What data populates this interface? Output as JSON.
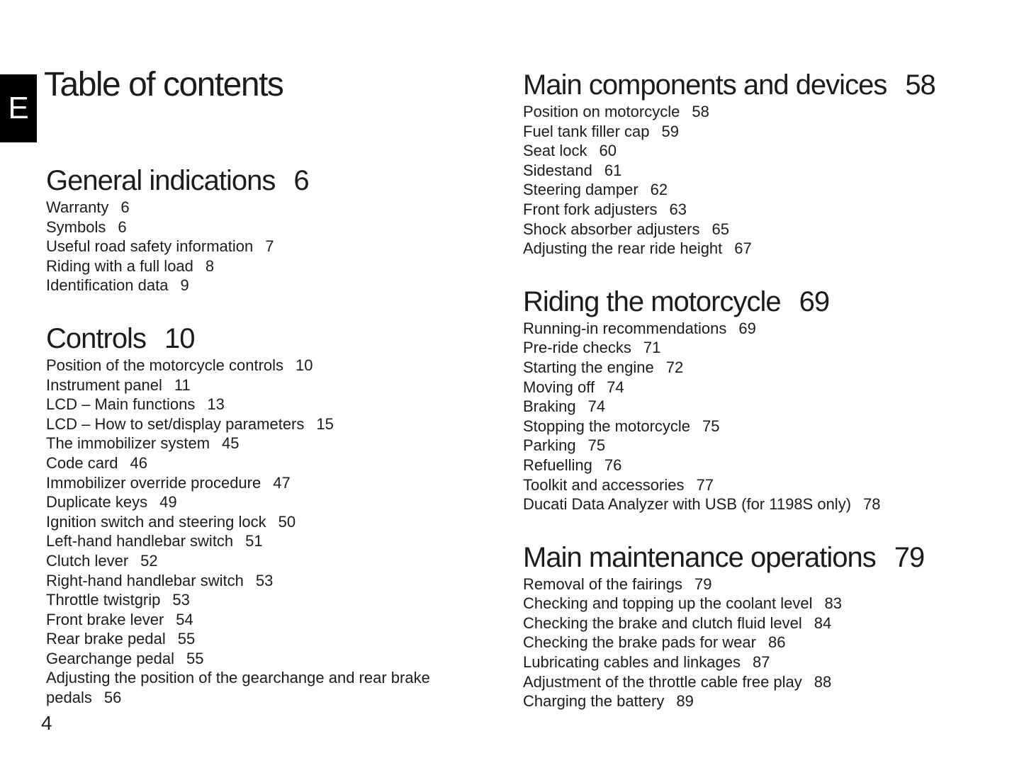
{
  "page": {
    "tab_letter": "E",
    "title": "Table of contents",
    "folio": "4"
  },
  "colors": {
    "background": "#ffffff",
    "ink": "#1c1c1c",
    "tab_bg": "#000000",
    "tab_ink": "#ffffff"
  },
  "columns": [
    {
      "side": "left",
      "sections": [
        {
          "title": "General indications",
          "page": "6",
          "items": [
            {
              "label": "Warranty",
              "page": "6"
            },
            {
              "label": "Symbols",
              "page": "6"
            },
            {
              "label": "Useful road safety information",
              "page": "7"
            },
            {
              "label": "Riding with a full load",
              "page": "8"
            },
            {
              "label": "Identification data",
              "page": "9"
            }
          ]
        },
        {
          "title": "Controls",
          "page": "10",
          "items": [
            {
              "label": "Position of the motorcycle controls",
              "page": "10"
            },
            {
              "label": "Instrument panel",
              "page": "11"
            },
            {
              "label": "LCD – Main functions",
              "page": "13"
            },
            {
              "label": "LCD – How to set/display parameters",
              "page": "15"
            },
            {
              "label": "The immobilizer system",
              "page": "45"
            },
            {
              "label": "Code card",
              "page": "46"
            },
            {
              "label": "Immobilizer override procedure",
              "page": "47"
            },
            {
              "label": "Duplicate keys",
              "page": "49"
            },
            {
              "label": "Ignition switch and steering lock",
              "page": "50"
            },
            {
              "label": "Left-hand handlebar switch",
              "page": "51"
            },
            {
              "label": "Clutch lever",
              "page": "52"
            },
            {
              "label": "Right-hand handlebar switch",
              "page": "53"
            },
            {
              "label": "Throttle twistgrip",
              "page": "53"
            },
            {
              "label": "Front brake lever",
              "page": "54"
            },
            {
              "label": "Rear brake pedal",
              "page": "55"
            },
            {
              "label": "Gearchange pedal",
              "page": "55"
            },
            {
              "label": "Adjusting the position of the gearchange and rear brake pedals",
              "page": "56"
            }
          ]
        }
      ]
    },
    {
      "side": "right",
      "sections": [
        {
          "title": "Main components and devices",
          "page": "58",
          "items": [
            {
              "label": "Position on motorcycle",
              "page": "58"
            },
            {
              "label": "Fuel tank filler cap",
              "page": "59"
            },
            {
              "label": "Seat lock",
              "page": "60"
            },
            {
              "label": "Sidestand",
              "page": "61"
            },
            {
              "label": "Steering damper",
              "page": "62"
            },
            {
              "label": "Front fork adjusters",
              "page": "63"
            },
            {
              "label": "Shock absorber adjusters",
              "page": "65"
            },
            {
              "label": "Adjusting the rear ride height",
              "page": "67"
            }
          ]
        },
        {
          "title": "Riding the motorcycle",
          "page": "69",
          "items": [
            {
              "label": "Running-in recommendations",
              "page": "69"
            },
            {
              "label": "Pre-ride checks",
              "page": "71"
            },
            {
              "label": "Starting the engine",
              "page": "72"
            },
            {
              "label": "Moving off",
              "page": "74"
            },
            {
              "label": "Braking",
              "page": "74"
            },
            {
              "label": "Stopping the motorcycle",
              "page": "75"
            },
            {
              "label": "Parking",
              "page": "75"
            },
            {
              "label": "Refuelling",
              "page": "76"
            },
            {
              "label": "Toolkit and accessories",
              "page": "77"
            },
            {
              "label": "Ducati Data Analyzer with USB (for 1198S only)",
              "page": "78"
            }
          ]
        },
        {
          "title": "Main maintenance operations",
          "page": "79",
          "items": [
            {
              "label": "Removal of the fairings",
              "page": "79"
            },
            {
              "label": "Checking and topping up the coolant level",
              "page": "83"
            },
            {
              "label": "Checking the brake and clutch fluid level",
              "page": "84"
            },
            {
              "label": "Checking the brake pads for wear",
              "page": "86"
            },
            {
              "label": "Lubricating cables and linkages",
              "page": "87"
            },
            {
              "label": "Adjustment of the throttle cable free play",
              "page": "88"
            },
            {
              "label": "Charging the battery",
              "page": "89"
            }
          ]
        }
      ]
    }
  ]
}
